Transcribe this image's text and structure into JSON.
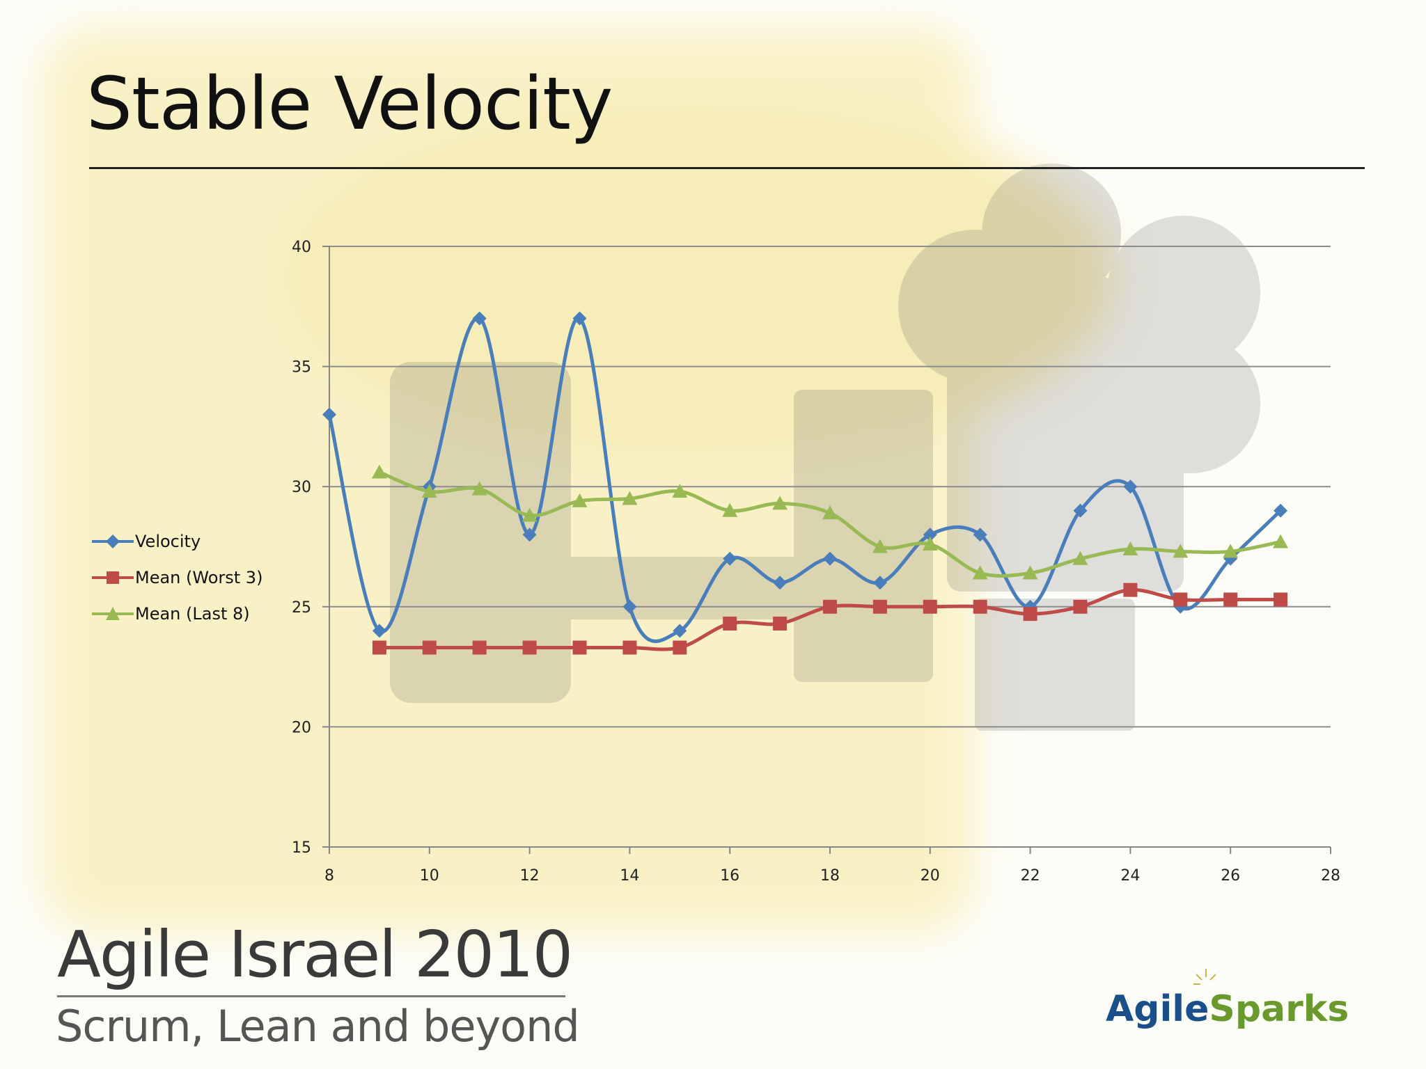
{
  "slide": {
    "title": "Stable Velocity"
  },
  "footer": {
    "conference": "Agile Israel 2010",
    "tagline": "Scrum, Lean and beyond",
    "logo_part1": "Agile",
    "logo_part2": "Sparks"
  },
  "colors": {
    "velocity": "#4a7ebb",
    "mean_worst3": "#be4b48",
    "mean_last8": "#98b954",
    "gridline": "#8c8c8c",
    "axis": "#868686"
  },
  "chart_data": {
    "type": "scatter",
    "smooth_lines": true,
    "xlim": [
      8,
      28
    ],
    "ylim": [
      15,
      40
    ],
    "x_ticks": [
      8,
      10,
      12,
      14,
      16,
      18,
      20,
      22,
      24,
      26,
      28
    ],
    "y_ticks": [
      15,
      20,
      25,
      30,
      35,
      40
    ],
    "grid": "horizontal",
    "legend_position": "left",
    "series": [
      {
        "name": "Velocity",
        "marker": "diamond",
        "color": "#4a7ebb",
        "points": [
          [
            8,
            33
          ],
          [
            9,
            24
          ],
          [
            10,
            30
          ],
          [
            11,
            37
          ],
          [
            12,
            28
          ],
          [
            13,
            37
          ],
          [
            14,
            25
          ],
          [
            15,
            24
          ],
          [
            16,
            27
          ],
          [
            17,
            26
          ],
          [
            18,
            27
          ],
          [
            19,
            26
          ],
          [
            20,
            28
          ],
          [
            21,
            28
          ],
          [
            22,
            25
          ],
          [
            23,
            29
          ],
          [
            24,
            30
          ],
          [
            25,
            25
          ],
          [
            26,
            27
          ],
          [
            27,
            29
          ]
        ]
      },
      {
        "name": "Mean (Worst 3)",
        "marker": "square",
        "color": "#be4b48",
        "points": [
          [
            9,
            23.3
          ],
          [
            10,
            23.3
          ],
          [
            11,
            23.3
          ],
          [
            12,
            23.3
          ],
          [
            13,
            23.3
          ],
          [
            14,
            23.3
          ],
          [
            15,
            23.3
          ],
          [
            16,
            24.3
          ],
          [
            17,
            24.3
          ],
          [
            18,
            25
          ],
          [
            19,
            25
          ],
          [
            20,
            25
          ],
          [
            21,
            25
          ],
          [
            22,
            24.7
          ],
          [
            23,
            25
          ],
          [
            24,
            25.7
          ],
          [
            25,
            25.3
          ],
          [
            26,
            25.3
          ],
          [
            27,
            25.3
          ]
        ]
      },
      {
        "name": "Mean (Last 8)",
        "marker": "triangle",
        "color": "#98b954",
        "points": [
          [
            9,
            30.6
          ],
          [
            10,
            29.8
          ],
          [
            11,
            29.9
          ],
          [
            12,
            28.8
          ],
          [
            13,
            29.4
          ],
          [
            14,
            29.5
          ],
          [
            15,
            29.8
          ],
          [
            16,
            29
          ],
          [
            17,
            29.3
          ],
          [
            18,
            28.9
          ],
          [
            19,
            27.5
          ],
          [
            20,
            27.6
          ],
          [
            21,
            26.4
          ],
          [
            22,
            26.4
          ],
          [
            23,
            27
          ],
          [
            24,
            27.4
          ],
          [
            25,
            27.3
          ],
          [
            26,
            27.3
          ],
          [
            27,
            27.7
          ]
        ]
      }
    ]
  }
}
